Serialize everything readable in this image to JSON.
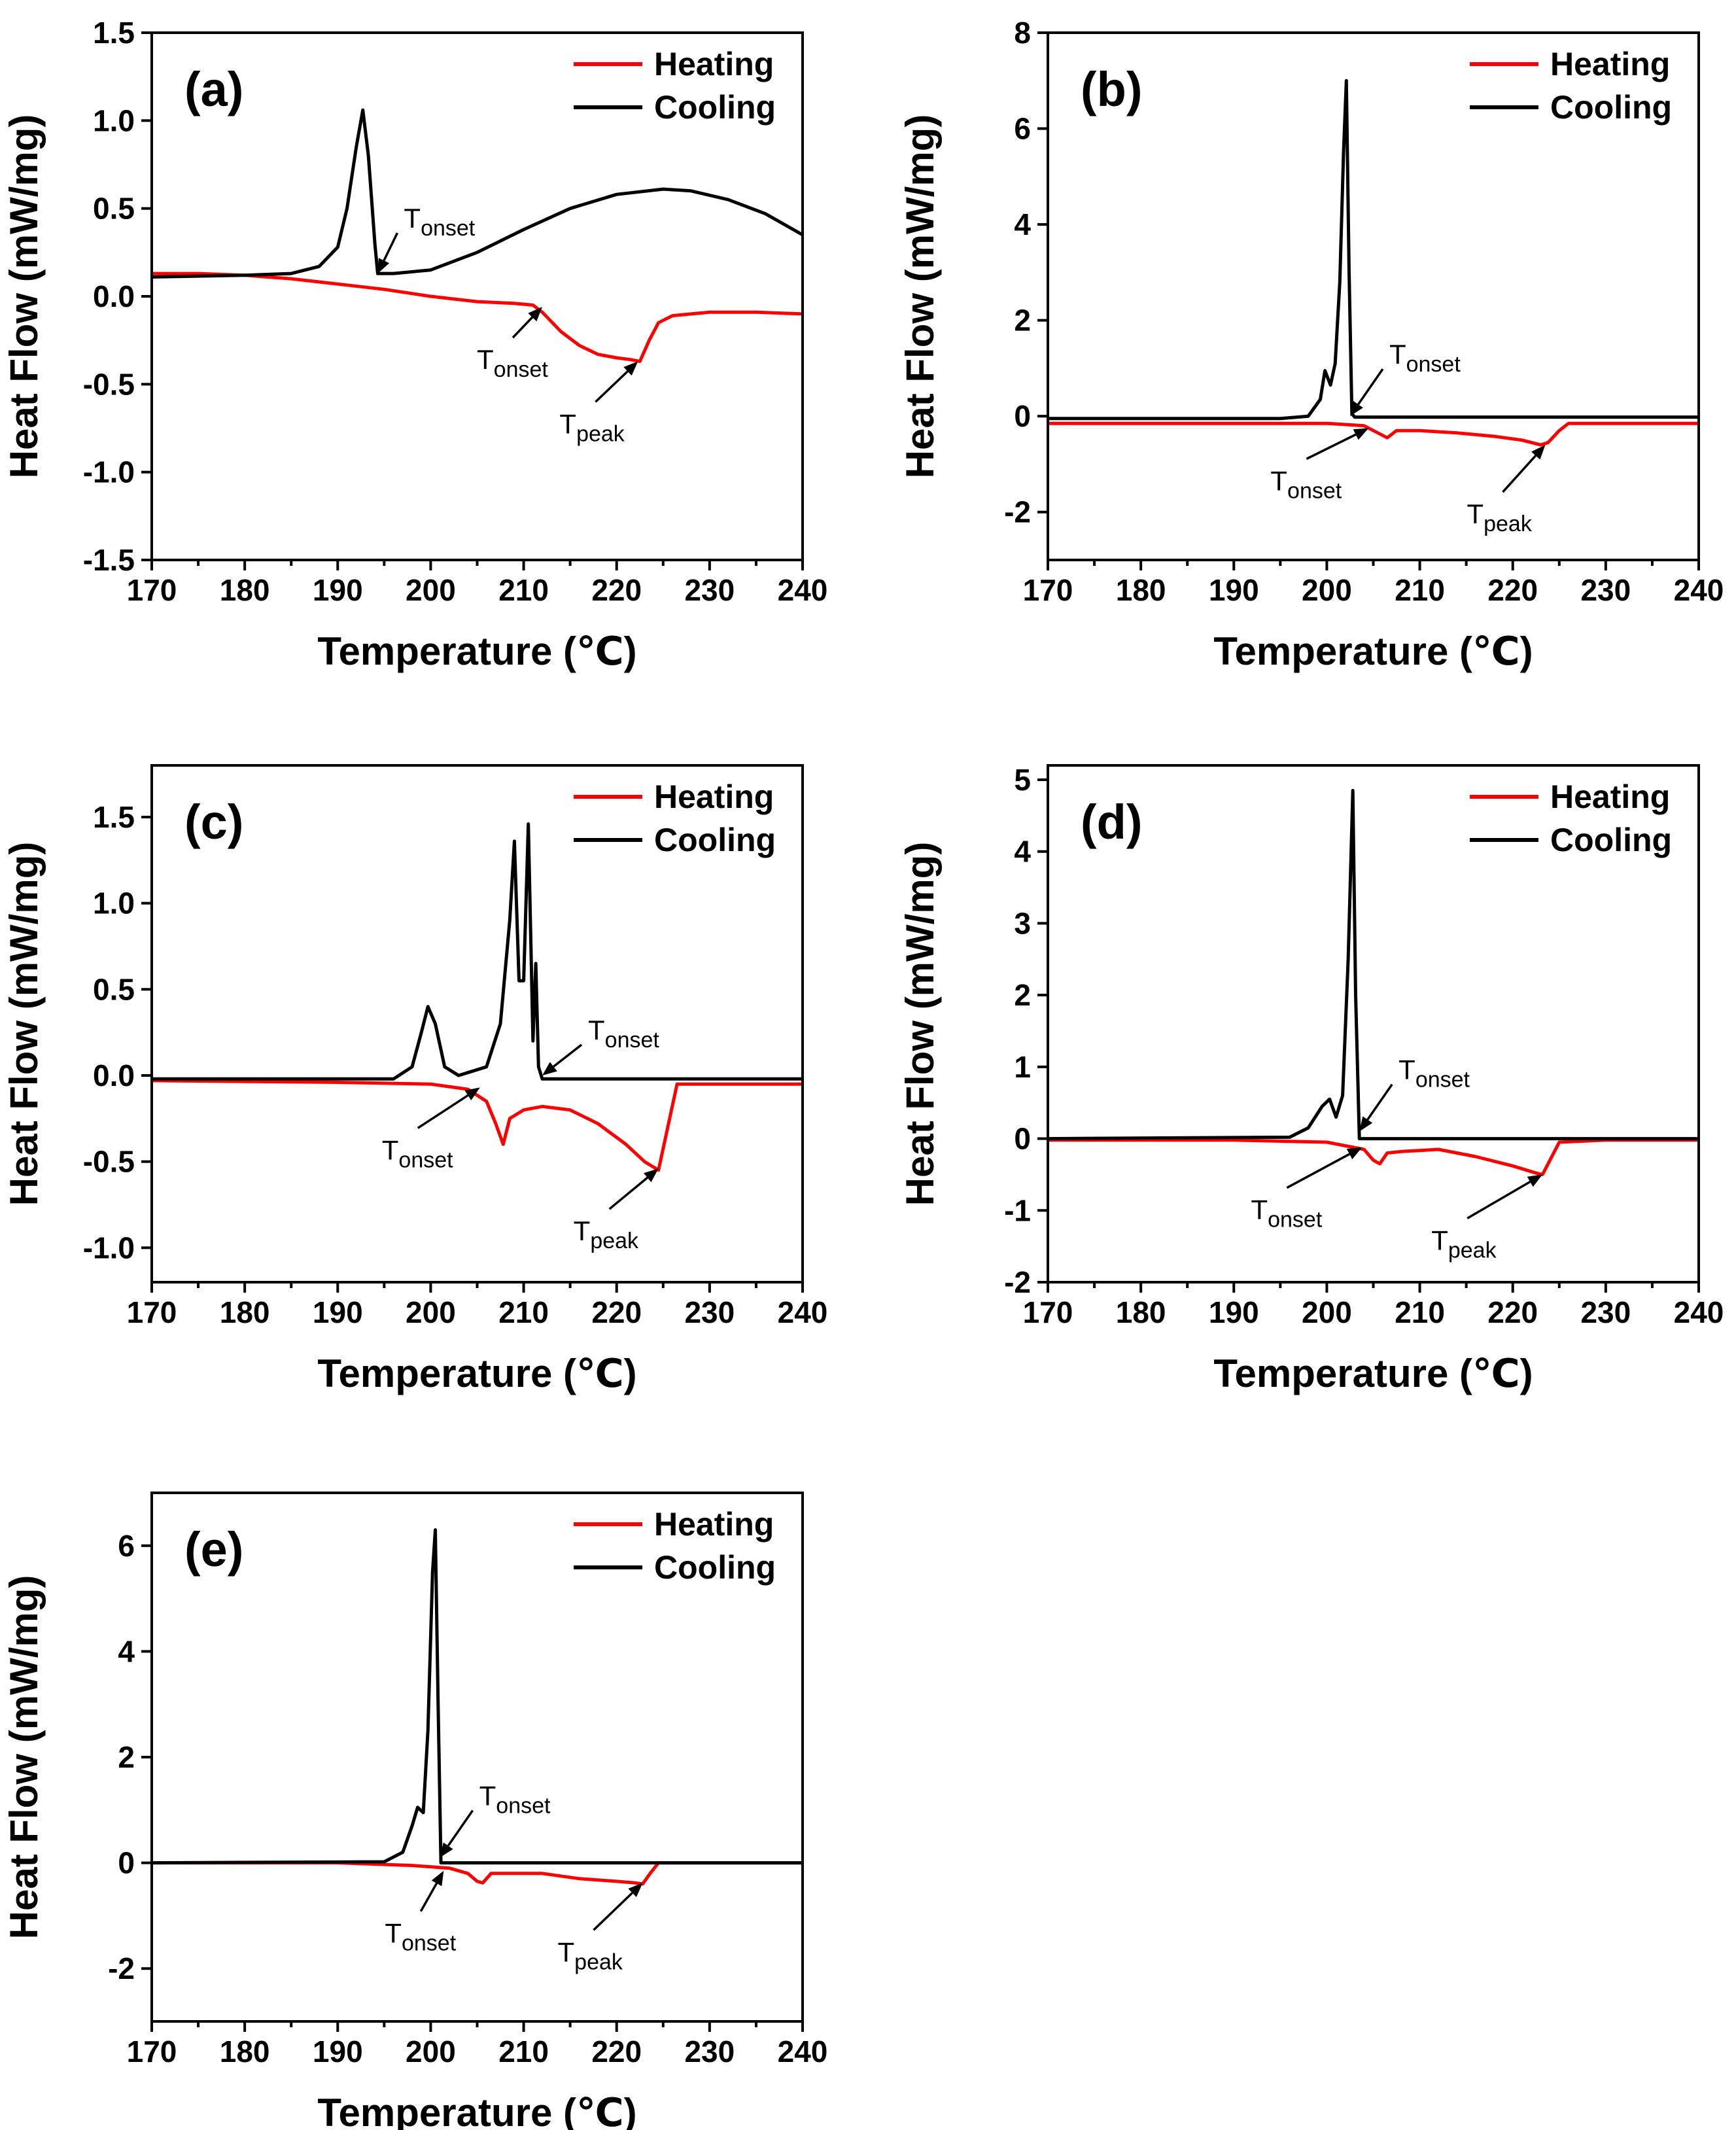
{
  "figure_title": "",
  "colors": {
    "heating": "#ff0000",
    "cooling": "#000000",
    "axis": "#000000",
    "background": "#ffffff"
  },
  "chart_data": [
    {
      "id": "a",
      "type": "line",
      "panel_label": "(a)",
      "xlabel": "Temperature (℃)",
      "ylabel": "Heat Flow (mW/mg)",
      "xlim": [
        170,
        240
      ],
      "ylim": [
        -1.5,
        1.5
      ],
      "xticks": [
        170,
        180,
        190,
        200,
        210,
        220,
        230,
        240
      ],
      "xtick_labels": [
        "170",
        "180",
        "190",
        "200",
        "210",
        "220",
        "230",
        "240"
      ],
      "yticks": [
        -1.5,
        -1.0,
        -0.5,
        0.0,
        0.5,
        1.0,
        1.5
      ],
      "ytick_labels": [
        "-1.5",
        "-1.0",
        "-0.5",
        "0.0",
        "0.5",
        "1.0",
        "1.5"
      ],
      "legend": {
        "position": "top-right",
        "entries": [
          "Heating",
          "Cooling"
        ]
      },
      "series": [
        {
          "name": "Heating",
          "color": "#ff0000",
          "x": [
            170,
            175,
            180,
            185,
            190,
            195,
            200,
            205,
            209,
            211,
            212,
            214,
            216,
            218,
            220,
            221.5,
            222.5,
            223.5,
            224.5,
            226,
            228,
            230,
            235,
            240
          ],
          "y": [
            0.13,
            0.13,
            0.12,
            0.1,
            0.07,
            0.04,
            0.0,
            -0.03,
            -0.04,
            -0.05,
            -0.09,
            -0.2,
            -0.28,
            -0.33,
            -0.35,
            -0.36,
            -0.37,
            -0.25,
            -0.15,
            -0.11,
            -0.1,
            -0.09,
            -0.09,
            -0.1
          ]
        },
        {
          "name": "Cooling",
          "color": "#000000",
          "x": [
            170,
            180,
            185,
            188,
            190,
            191,
            192,
            192.7,
            193.3,
            194,
            194.3,
            196,
            200,
            205,
            210,
            215,
            220,
            225,
            228,
            232,
            236,
            240
          ],
          "y": [
            0.11,
            0.12,
            0.13,
            0.17,
            0.28,
            0.5,
            0.85,
            1.06,
            0.8,
            0.3,
            0.13,
            0.13,
            0.15,
            0.25,
            0.38,
            0.5,
            0.58,
            0.61,
            0.6,
            0.55,
            0.47,
            0.35
          ]
        }
      ],
      "annotations": [
        {
          "text": "T",
          "sub": "onset",
          "x": 194.3,
          "y": 0.13
        },
        {
          "text": "T",
          "sub": "onset",
          "x": 212,
          "y": -0.06
        },
        {
          "text": "T",
          "sub": "peak",
          "x": 222.3,
          "y": -0.37
        }
      ]
    },
    {
      "id": "b",
      "type": "line",
      "panel_label": "(b)",
      "xlabel": "Temperature (℃)",
      "ylabel": "Heat Flow (mW/mg)",
      "xlim": [
        170,
        240
      ],
      "ylim": [
        -3,
        8
      ],
      "xticks": [
        170,
        180,
        190,
        200,
        210,
        220,
        230,
        240
      ],
      "xtick_labels": [
        "170",
        "180",
        "190",
        "200",
        "210",
        "220",
        "230",
        "240"
      ],
      "yticks": [
        -2,
        0,
        2,
        4,
        6,
        8
      ],
      "ytick_labels": [
        "-2",
        "0",
        "2",
        "4",
        "6",
        "8"
      ],
      "legend": {
        "position": "top-right",
        "entries": [
          "Heating",
          "Cooling"
        ]
      },
      "series": [
        {
          "name": "Heating",
          "color": "#ff0000",
          "x": [
            170,
            190,
            200,
            204,
            205.5,
            206.5,
            207.5,
            210,
            214,
            218,
            221,
            223,
            223.8,
            225,
            226,
            230,
            240
          ],
          "y": [
            -0.15,
            -0.15,
            -0.15,
            -0.2,
            -0.35,
            -0.45,
            -0.3,
            -0.3,
            -0.35,
            -0.42,
            -0.5,
            -0.6,
            -0.55,
            -0.3,
            -0.15,
            -0.15,
            -0.15
          ]
        },
        {
          "name": "Cooling",
          "color": "#000000",
          "x": [
            170,
            195,
            198,
            199.3,
            199.8,
            200.4,
            200.9,
            201.4,
            201.8,
            202.1,
            202.4,
            202.7,
            203,
            210,
            240
          ],
          "y": [
            -0.05,
            -0.05,
            0.0,
            0.35,
            0.95,
            0.65,
            1.1,
            2.8,
            5.5,
            7.0,
            3.0,
            0.05,
            -0.02,
            -0.02,
            -0.02
          ]
        }
      ],
      "annotations": [
        {
          "text": "T",
          "sub": "onset",
          "x": 202.5,
          "y": 0.0
        },
        {
          "text": "T",
          "sub": "onset",
          "x": 204.5,
          "y": -0.25
        },
        {
          "text": "T",
          "sub": "peak",
          "x": 223.5,
          "y": -0.6
        }
      ]
    },
    {
      "id": "c",
      "type": "line",
      "panel_label": "(c)",
      "xlabel": "Temperature (℃)",
      "ylabel": "Heat Flow (mW/mg)",
      "xlim": [
        170,
        240
      ],
      "ylim": [
        -1.2,
        1.8
      ],
      "xticks": [
        170,
        180,
        190,
        200,
        210,
        220,
        230,
        240
      ],
      "xtick_labels": [
        "170",
        "180",
        "190",
        "200",
        "210",
        "220",
        "230",
        "240"
      ],
      "yticks": [
        -1.0,
        -0.5,
        0.0,
        0.5,
        1.0,
        1.5
      ],
      "ytick_labels": [
        "-1.0",
        "-0.5",
        "0.0",
        "0.5",
        "1.0",
        "1.5"
      ],
      "legend": {
        "position": "top-right",
        "entries": [
          "Heating",
          "Cooling"
        ]
      },
      "series": [
        {
          "name": "Heating",
          "color": "#ff0000",
          "x": [
            170,
            190,
            200,
            204,
            206,
            207,
            207.8,
            208.5,
            210,
            212,
            215,
            218,
            221,
            223,
            224.5,
            225.5,
            226.5,
            228,
            240
          ],
          "y": [
            -0.03,
            -0.04,
            -0.05,
            -0.08,
            -0.15,
            -0.28,
            -0.4,
            -0.25,
            -0.2,
            -0.18,
            -0.2,
            -0.28,
            -0.4,
            -0.5,
            -0.55,
            -0.3,
            -0.05,
            -0.05,
            -0.05
          ]
        },
        {
          "name": "Cooling",
          "color": "#000000",
          "x": [
            170,
            196,
            198,
            199,
            199.7,
            200.5,
            201.5,
            203,
            206,
            207.5,
            208.5,
            209,
            209.5,
            210,
            210.5,
            211,
            211.3,
            211.6,
            212,
            212.5,
            240
          ],
          "y": [
            -0.02,
            -0.02,
            0.05,
            0.25,
            0.4,
            0.3,
            0.05,
            0.0,
            0.05,
            0.3,
            0.9,
            1.36,
            0.55,
            0.55,
            1.46,
            0.2,
            0.65,
            0.05,
            -0.02,
            -0.02,
            -0.02
          ]
        }
      ],
      "annotations": [
        {
          "text": "T",
          "sub": "onset",
          "x": 212,
          "y": 0.0
        },
        {
          "text": "T",
          "sub": "onset",
          "x": 205.3,
          "y": -0.07
        },
        {
          "text": "T",
          "sub": "peak",
          "x": 224.5,
          "y": -0.54
        }
      ]
    },
    {
      "id": "d",
      "type": "line",
      "panel_label": "(d)",
      "xlabel": "Temperature (℃)",
      "ylabel": "Heat Flow (mW/mg)",
      "xlim": [
        170,
        240
      ],
      "ylim": [
        -2,
        5.2
      ],
      "xticks": [
        170,
        180,
        190,
        200,
        210,
        220,
        230,
        240
      ],
      "xtick_labels": [
        "170",
        "180",
        "190",
        "200",
        "210",
        "220",
        "230",
        "240"
      ],
      "yticks": [
        -2,
        -1,
        0,
        1,
        2,
        3,
        4,
        5
      ],
      "ytick_labels": [
        "-2",
        "-1",
        "0",
        "1",
        "2",
        "3",
        "4",
        "5"
      ],
      "legend": {
        "position": "top-right",
        "entries": [
          "Heating",
          "Cooling"
        ]
      },
      "series": [
        {
          "name": "Heating",
          "color": "#ff0000",
          "x": [
            170,
            190,
            200,
            204,
            205,
            205.7,
            206.5,
            208,
            212,
            216,
            220,
            222.5,
            223.2,
            224,
            225,
            230,
            240
          ],
          "y": [
            -0.02,
            -0.02,
            -0.05,
            -0.15,
            -0.3,
            -0.35,
            -0.2,
            -0.18,
            -0.15,
            -0.25,
            -0.38,
            -0.48,
            -0.5,
            -0.3,
            -0.05,
            -0.02,
            -0.02
          ]
        },
        {
          "name": "Cooling",
          "color": "#000000",
          "x": [
            170,
            196,
            198,
            199.5,
            200.3,
            201,
            201.7,
            202.3,
            202.8,
            203.1,
            203.5,
            204,
            210,
            240
          ],
          "y": [
            0.0,
            0.02,
            0.15,
            0.45,
            0.55,
            0.3,
            0.6,
            2.5,
            4.85,
            2.0,
            0.0,
            0.0,
            0.0,
            0.0
          ]
        }
      ],
      "annotations": [
        {
          "text": "T",
          "sub": "onset",
          "x": 203.5,
          "y": 0.1
        },
        {
          "text": "T",
          "sub": "onset",
          "x": 203.8,
          "y": -0.12
        },
        {
          "text": "T",
          "sub": "peak",
          "x": 223.2,
          "y": -0.5
        }
      ]
    },
    {
      "id": "e",
      "type": "line",
      "panel_label": "(e)",
      "xlabel": "Temperature (℃)",
      "ylabel": "Heat Flow (mW/mg)",
      "xlim": [
        170,
        240
      ],
      "ylim": [
        -3,
        7
      ],
      "xticks": [
        170,
        180,
        190,
        200,
        210,
        220,
        230,
        240
      ],
      "xtick_labels": [
        "170",
        "180",
        "190",
        "200",
        "210",
        "220",
        "230",
        "240"
      ],
      "yticks": [
        -2,
        0,
        2,
        4,
        6
      ],
      "ytick_labels": [
        "-2",
        "0",
        "2",
        "4",
        "6"
      ],
      "legend": {
        "position": "top-right",
        "entries": [
          "Heating",
          "Cooling"
        ]
      },
      "series": [
        {
          "name": "Heating",
          "color": "#ff0000",
          "x": [
            170,
            190,
            198,
            202,
            204,
            205,
            205.6,
            206.5,
            208,
            212,
            216,
            220,
            222,
            222.8,
            223.6,
            224.5,
            230,
            240
          ],
          "y": [
            0.0,
            0.0,
            -0.05,
            -0.1,
            -0.2,
            -0.35,
            -0.38,
            -0.2,
            -0.2,
            -0.2,
            -0.3,
            -0.35,
            -0.38,
            -0.4,
            -0.2,
            0.0,
            0.0,
            0.0
          ]
        },
        {
          "name": "Cooling",
          "color": "#000000",
          "x": [
            170,
            195,
            197,
            198,
            198.6,
            199.2,
            199.7,
            200.2,
            200.5,
            200.8,
            201.1,
            205,
            240
          ],
          "y": [
            0.0,
            0.02,
            0.2,
            0.7,
            1.05,
            0.95,
            2.5,
            5.5,
            6.3,
            3.0,
            0.0,
            0.0,
            0.0
          ]
        }
      ],
      "annotations": [
        {
          "text": "T",
          "sub": "onset",
          "x": 201,
          "y": 0.1
        },
        {
          "text": "T",
          "sub": "onset",
          "x": 201.4,
          "y": -0.15
        },
        {
          "text": "T",
          "sub": "peak",
          "x": 222.8,
          "y": -0.38
        }
      ]
    }
  ]
}
